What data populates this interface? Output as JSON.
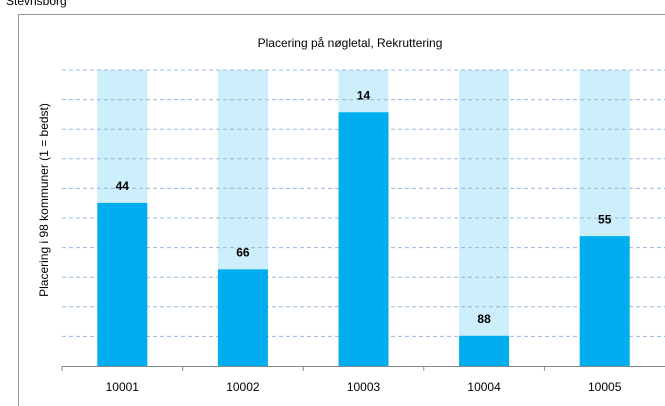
{
  "page_title": "Stevnsborg",
  "chart_data": {
    "type": "bar",
    "title": "Placering på nøgletal, Rekruttering",
    "y_label": "Placering i 98 kommuner (1 = bedst)",
    "categories": [
      "10001",
      "10002",
      "10003",
      "10004",
      "10005"
    ],
    "values": [
      44,
      66,
      14,
      88,
      55
    ],
    "ylim": [
      98,
      0
    ],
    "grid_values": [
      0,
      9.8,
      19.6,
      29.4,
      39.2,
      49,
      58.8,
      68.6,
      78.4,
      88.2
    ],
    "color": "#00aeef",
    "background_color": "#cdeefb",
    "grid": true
  }
}
